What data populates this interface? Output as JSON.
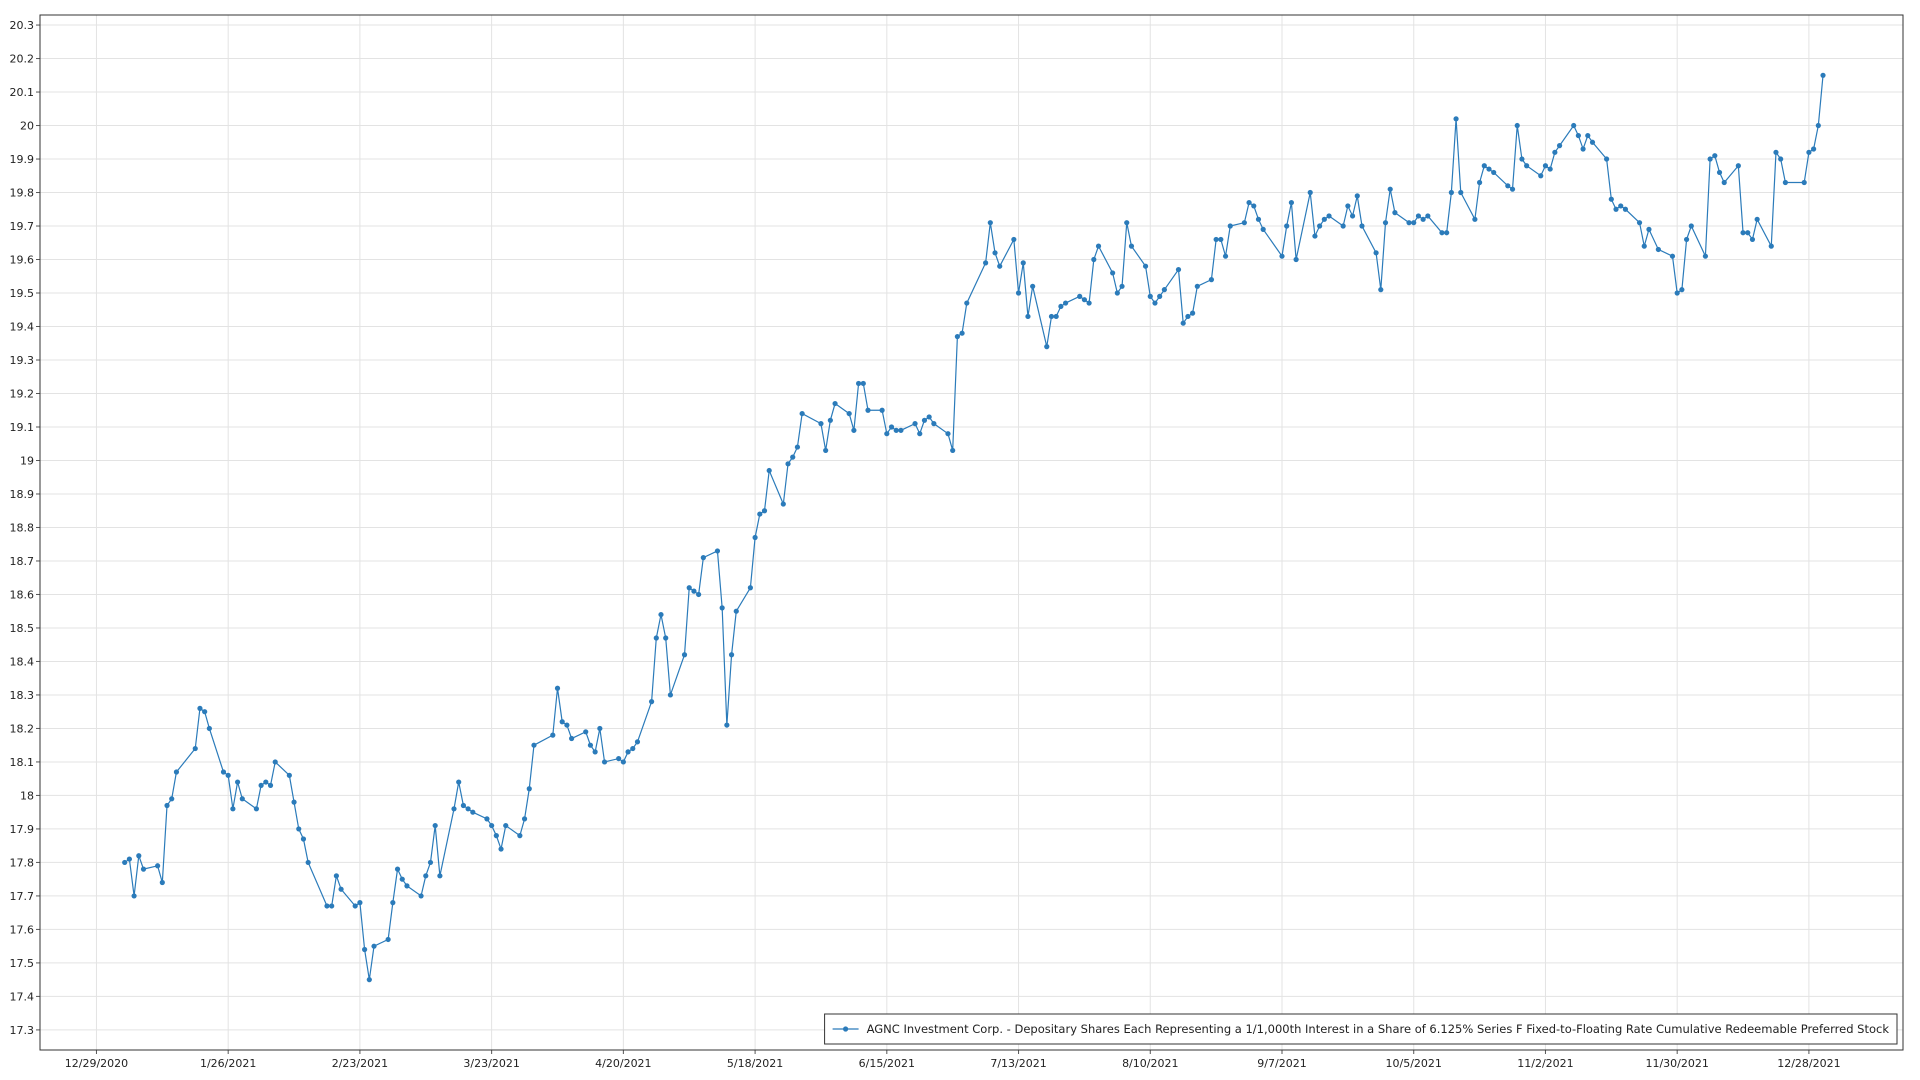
{
  "chart_data": {
    "type": "line",
    "x": [
      "1/4/2021",
      "1/5/2021",
      "1/6/2021",
      "1/7/2021",
      "1/8/2021",
      "1/11/2021",
      "1/12/2021",
      "1/13/2021",
      "1/14/2021",
      "1/15/2021",
      "1/19/2021",
      "1/20/2021",
      "1/21/2021",
      "1/22/2021",
      "1/25/2021",
      "1/26/2021",
      "1/27/2021",
      "1/28/2021",
      "1/29/2021",
      "2/1/2021",
      "2/2/2021",
      "2/3/2021",
      "2/4/2021",
      "2/5/2021",
      "2/8/2021",
      "2/9/2021",
      "2/10/2021",
      "2/11/2021",
      "2/12/2021",
      "2/16/2021",
      "2/17/2021",
      "2/18/2021",
      "2/19/2021",
      "2/22/2021",
      "2/23/2021",
      "2/24/2021",
      "2/25/2021",
      "2/26/2021",
      "3/1/2021",
      "3/2/2021",
      "3/3/2021",
      "3/4/2021",
      "3/5/2021",
      "3/8/2021",
      "3/9/2021",
      "3/10/2021",
      "3/11/2021",
      "3/12/2021",
      "3/15/2021",
      "3/16/2021",
      "3/17/2021",
      "3/18/2021",
      "3/19/2021",
      "3/22/2021",
      "3/23/2021",
      "3/24/2021",
      "3/25/2021",
      "3/26/2021",
      "3/29/2021",
      "3/30/2021",
      "3/31/2021",
      "4/1/2021",
      "4/5/2021",
      "4/6/2021",
      "4/7/2021",
      "4/8/2021",
      "4/9/2021",
      "4/12/2021",
      "4/13/2021",
      "4/14/2021",
      "4/15/2021",
      "4/16/2021",
      "4/19/2021",
      "4/20/2021",
      "4/21/2021",
      "4/22/2021",
      "4/23/2021",
      "4/26/2021",
      "4/27/2021",
      "4/28/2021",
      "4/29/2021",
      "4/30/2021",
      "5/3/2021",
      "5/4/2021",
      "5/5/2021",
      "5/6/2021",
      "5/7/2021",
      "5/10/2021",
      "5/11/2021",
      "5/12/2021",
      "5/13/2021",
      "5/14/2021",
      "5/17/2021",
      "5/18/2021",
      "5/19/2021",
      "5/20/2021",
      "5/21/2021",
      "5/24/2021",
      "5/25/2021",
      "5/26/2021",
      "5/27/2021",
      "5/28/2021",
      "6/1/2021",
      "6/2/2021",
      "6/3/2021",
      "6/4/2021",
      "6/7/2021",
      "6/8/2021",
      "6/9/2021",
      "6/10/2021",
      "6/11/2021",
      "6/14/2021",
      "6/15/2021",
      "6/16/2021",
      "6/17/2021",
      "6/18/2021",
      "6/21/2021",
      "6/22/2021",
      "6/23/2021",
      "6/24/2021",
      "6/25/2021",
      "6/28/2021",
      "6/29/2021",
      "6/30/2021",
      "7/1/2021",
      "7/2/2021",
      "7/6/2021",
      "7/7/2021",
      "7/8/2021",
      "7/9/2021",
      "7/12/2021",
      "7/13/2021",
      "7/14/2021",
      "7/15/2021",
      "7/16/2021",
      "7/19/2021",
      "7/20/2021",
      "7/21/2021",
      "7/22/2021",
      "7/23/2021",
      "7/26/2021",
      "7/27/2021",
      "7/28/2021",
      "7/29/2021",
      "7/30/2021",
      "8/2/2021",
      "8/3/2021",
      "8/4/2021",
      "8/5/2021",
      "8/6/2021",
      "8/9/2021",
      "8/10/2021",
      "8/11/2021",
      "8/12/2021",
      "8/13/2021",
      "8/16/2021",
      "8/17/2021",
      "8/18/2021",
      "8/19/2021",
      "8/20/2021",
      "8/23/2021",
      "8/24/2021",
      "8/25/2021",
      "8/26/2021",
      "8/27/2021",
      "8/30/2021",
      "8/31/2021",
      "9/1/2021",
      "9/2/2021",
      "9/3/2021",
      "9/7/2021",
      "9/8/2021",
      "9/9/2021",
      "9/10/2021",
      "9/13/2021",
      "9/14/2021",
      "9/15/2021",
      "9/16/2021",
      "9/17/2021",
      "9/20/2021",
      "9/21/2021",
      "9/22/2021",
      "9/23/2021",
      "9/24/2021",
      "9/27/2021",
      "9/28/2021",
      "9/29/2021",
      "9/30/2021",
      "10/1/2021",
      "10/4/2021",
      "10/5/2021",
      "10/6/2021",
      "10/7/2021",
      "10/8/2021",
      "10/11/2021",
      "10/12/2021",
      "10/13/2021",
      "10/14/2021",
      "10/15/2021",
      "10/18/2021",
      "10/19/2021",
      "10/20/2021",
      "10/21/2021",
      "10/22/2021",
      "10/25/2021",
      "10/26/2021",
      "10/27/2021",
      "10/28/2021",
      "10/29/2021",
      "11/1/2021",
      "11/2/2021",
      "11/3/2021",
      "11/4/2021",
      "11/5/2021",
      "11/8/2021",
      "11/9/2021",
      "11/10/2021",
      "11/11/2021",
      "11/12/2021",
      "11/15/2021",
      "11/16/2021",
      "11/17/2021",
      "11/18/2021",
      "11/19/2021",
      "11/22/2021",
      "11/23/2021",
      "11/24/2021",
      "11/26/2021",
      "11/29/2021",
      "11/30/2021",
      "12/1/2021",
      "12/2/2021",
      "12/3/2021",
      "12/6/2021",
      "12/7/2021",
      "12/8/2021",
      "12/9/2021",
      "12/10/2021",
      "12/13/2021",
      "12/14/2021",
      "12/15/2021",
      "12/16/2021",
      "12/17/2021",
      "12/20/2021",
      "12/21/2021",
      "12/22/2021",
      "12/23/2021",
      "12/27/2021",
      "12/28/2021",
      "12/29/2021",
      "12/30/2021",
      "12/31/2021"
    ],
    "series": [
      {
        "name": "AGNC Investment Corp. - Depositary Shares Each Representing a 1/1,000th Interest in a Share of 6.125% Series F Fixed-to-Floating Rate Cumulative Redeemable Preferred Stock",
        "color": "#2b7bba",
        "values": [
          17.8,
          17.81,
          17.7,
          17.82,
          17.78,
          17.79,
          17.74,
          17.97,
          17.99,
          18.07,
          18.14,
          18.26,
          18.25,
          18.2,
          18.07,
          18.06,
          17.96,
          18.04,
          17.99,
          17.96,
          18.03,
          18.04,
          18.03,
          18.1,
          18.06,
          17.98,
          17.9,
          17.87,
          17.8,
          17.67,
          17.67,
          17.76,
          17.72,
          17.67,
          17.68,
          17.54,
          17.45,
          17.55,
          17.57,
          17.68,
          17.78,
          17.75,
          17.73,
          17.7,
          17.76,
          17.8,
          17.91,
          17.76,
          17.96,
          18.04,
          17.97,
          17.96,
          17.95,
          17.93,
          17.91,
          17.88,
          17.84,
          17.91,
          17.88,
          17.93,
          18.02,
          18.15,
          18.18,
          18.32,
          18.22,
          18.21,
          18.17,
          18.19,
          18.15,
          18.13,
          18.2,
          18.1,
          18.11,
          18.1,
          18.13,
          18.14,
          18.16,
          18.28,
          18.47,
          18.54,
          18.47,
          18.3,
          18.42,
          18.62,
          18.61,
          18.6,
          18.71,
          18.73,
          18.56,
          18.21,
          18.42,
          18.55,
          18.62,
          18.77,
          18.84,
          18.85,
          18.97,
          18.87,
          18.99,
          19.01,
          19.04,
          19.14,
          19.11,
          19.03,
          19.12,
          19.17,
          19.14,
          19.09,
          19.23,
          19.23,
          19.15,
          19.15,
          19.08,
          19.1,
          19.09,
          19.09,
          19.11,
          19.08,
          19.12,
          19.13,
          19.11,
          19.08,
          19.03,
          19.37,
          19.38,
          19.47,
          19.59,
          19.71,
          19.62,
          19.58,
          19.66,
          19.5,
          19.59,
          19.43,
          19.52,
          19.34,
          19.43,
          19.43,
          19.46,
          19.47,
          19.49,
          19.48,
          19.47,
          19.6,
          19.64,
          19.56,
          19.5,
          19.52,
          19.71,
          19.64,
          19.58,
          19.49,
          19.47,
          19.49,
          19.51,
          19.57,
          19.41,
          19.43,
          19.44,
          19.52,
          19.54,
          19.66,
          19.66,
          19.61,
          19.7,
          19.71,
          19.77,
          19.76,
          19.72,
          19.69,
          19.61,
          19.7,
          19.77,
          19.6,
          19.8,
          19.67,
          19.7,
          19.72,
          19.73,
          19.7,
          19.76,
          19.73,
          19.79,
          19.7,
          19.62,
          19.51,
          19.71,
          19.81,
          19.74,
          19.71,
          19.71,
          19.73,
          19.72,
          19.73,
          19.68,
          19.68,
          19.8,
          20.02,
          19.8,
          19.72,
          19.83,
          19.88,
          19.87,
          19.86,
          19.82,
          19.81,
          20.0,
          19.9,
          19.88,
          19.85,
          19.88,
          19.87,
          19.92,
          19.94,
          20.0,
          19.97,
          19.93,
          19.97,
          19.95,
          19.9,
          19.78,
          19.75,
          19.76,
          19.75,
          19.71,
          19.64,
          19.69,
          19.63,
          19.61,
          19.5,
          19.51,
          19.66,
          19.7,
          19.61,
          19.9,
          19.91,
          19.86,
          19.83,
          19.88,
          19.68,
          19.68,
          19.66,
          19.72,
          19.64,
          19.92,
          19.9,
          19.83,
          19.83,
          19.92,
          19.93,
          20.0,
          20.15
        ]
      }
    ],
    "xlim": [
      "12/17/2020",
      "1/17/2022"
    ],
    "xticks": [
      "12/29/2020",
      "1/26/2021",
      "2/23/2021",
      "3/23/2021",
      "4/20/2021",
      "5/18/2021",
      "6/15/2021",
      "7/13/2021",
      "8/10/2021",
      "9/7/2021",
      "10/5/2021",
      "11/2/2021",
      "11/30/2021",
      "12/28/2021"
    ],
    "ylim": [
      17.24,
      20.33
    ],
    "yticks": [
      17.3,
      17.4,
      17.5,
      17.6,
      17.7,
      17.8,
      17.9,
      18,
      18.1,
      18.2,
      18.3,
      18.4,
      18.5,
      18.6,
      18.7,
      18.8,
      18.9,
      19,
      19.1,
      19.2,
      19.3,
      19.4,
      19.5,
      19.6,
      19.7,
      19.8,
      19.9,
      20,
      20.1,
      20.2,
      20.3
    ],
    "grid": true,
    "legend_position": "lower right"
  }
}
